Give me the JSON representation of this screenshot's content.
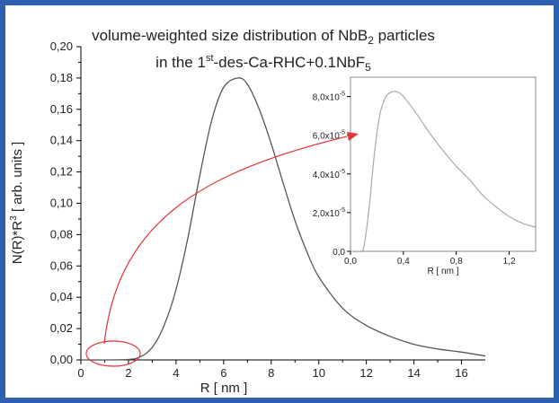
{
  "colors": {
    "frame_border": "#2f5fb0",
    "curve": "#555555",
    "inset_curve": "#aaaaaa",
    "annotation": "#e8333a"
  },
  "chart_data": [
    {
      "type": "line",
      "title_line1_main": "volume-weighted size distribution of NbB",
      "title_line1_sub": "2",
      "title_line1_tail": " particles",
      "title_line2_pre": "in the 1",
      "title_line2_sup": "st",
      "title_line2_mid": "-des-Ca-RHC+0.1NbF",
      "title_line2_sub": "5",
      "xlabel": "R [ nm ]",
      "ylabel_pre": "N(R)*R",
      "ylabel_sup": "3",
      "ylabel_post": " [ arb. units ]",
      "xlim": [
        0,
        17
      ],
      "ylim": [
        0,
        0.2
      ],
      "xticks": [
        {
          "v": 0,
          "label": "0"
        },
        {
          "v": 2,
          "label": "2"
        },
        {
          "v": 4,
          "label": "4"
        },
        {
          "v": 6,
          "label": "6"
        },
        {
          "v": 8,
          "label": "8"
        },
        {
          "v": 10,
          "label": "10"
        },
        {
          "v": 12,
          "label": "12"
        },
        {
          "v": 14,
          "label": "14"
        },
        {
          "v": 16,
          "label": "16"
        }
      ],
      "yticks": [
        {
          "v": 0,
          "label": "0,00"
        },
        {
          "v": 0.02,
          "label": "0,02"
        },
        {
          "v": 0.04,
          "label": "0,04"
        },
        {
          "v": 0.06,
          "label": "0,06"
        },
        {
          "v": 0.08,
          "label": "0,08"
        },
        {
          "v": 0.1,
          "label": "0,10"
        },
        {
          "v": 0.12,
          "label": "0,12"
        },
        {
          "v": 0.14,
          "label": "0,14"
        },
        {
          "v": 0.16,
          "label": "0,16"
        },
        {
          "v": 0.18,
          "label": "0,18"
        },
        {
          "v": 0.2,
          "label": "0,20"
        }
      ],
      "grid": false,
      "series": [
        {
          "x": [
            0,
            1,
            2,
            2.5,
            3,
            3.5,
            4,
            4.5,
            5,
            5.5,
            6,
            6.6,
            7,
            7.5,
            8,
            8.5,
            9,
            9.5,
            10,
            11,
            12,
            13,
            14,
            15,
            16,
            17
          ],
          "y": [
            0,
            0,
            0.0003,
            0.002,
            0.008,
            0.022,
            0.045,
            0.078,
            0.118,
            0.153,
            0.174,
            0.18,
            0.176,
            0.16,
            0.138,
            0.113,
            0.089,
            0.069,
            0.053,
            0.033,
            0.022,
            0.015,
            0.01,
            0.007,
            0.005,
            0.0025
          ]
        }
      ]
    },
    {
      "type": "line",
      "inset": true,
      "xlabel": "R [ nm ]",
      "xlim": [
        0,
        1.4
      ],
      "ylim": [
        0,
        9e-05
      ],
      "xticks": [
        {
          "v": 0,
          "label": "0,0"
        },
        {
          "v": 0.4,
          "label": "0,4"
        },
        {
          "v": 0.8,
          "label": "0,8"
        },
        {
          "v": 1.2,
          "label": "1,2"
        }
      ],
      "yticks": [
        {
          "v": 0,
          "label": "0,0"
        },
        {
          "v": 2e-05,
          "label": "2,0x10",
          "exp": "-5"
        },
        {
          "v": 4e-05,
          "label": "4,0x10",
          "exp": "-5"
        },
        {
          "v": 6e-05,
          "label": "6,0x10",
          "exp": "-5"
        },
        {
          "v": 8e-05,
          "label": "8,0x10",
          "exp": "-5"
        }
      ],
      "series": [
        {
          "x": [
            0,
            0.06,
            0.1,
            0.14,
            0.18,
            0.22,
            0.26,
            0.3,
            0.35,
            0.4,
            0.5,
            0.6,
            0.7,
            0.8,
            0.9,
            1.0,
            1.1,
            1.2,
            1.3,
            1.4
          ],
          "y": [
            0,
            0,
            2e-06,
            2.2e-05,
            5e-05,
            7e-05,
            7.9e-05,
            8.2e-05,
            8.25e-05,
            8e-05,
            7.1e-05,
            6.1e-05,
            5.2e-05,
            4.4e-05,
            3.7e-05,
            2.9e-05,
            2.3e-05,
            1.8e-05,
            1.45e-05,
            1.25e-05
          ]
        }
      ]
    }
  ]
}
